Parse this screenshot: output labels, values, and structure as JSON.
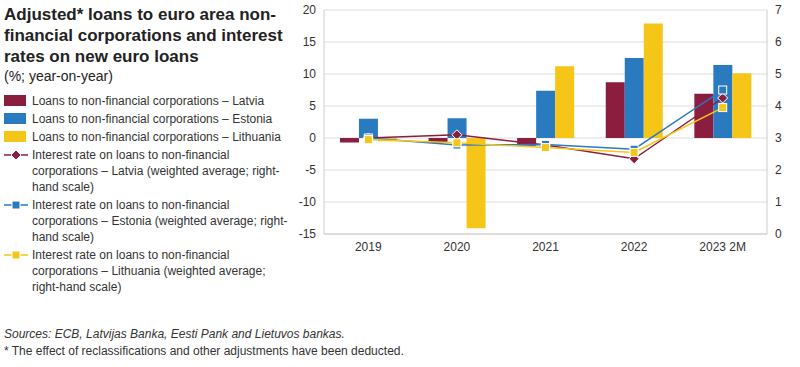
{
  "chart_data": {
    "type": "bar",
    "title": "Adjusted* loans to euro area non-financial corporations and interest  rates on new euro loans",
    "subtitle": "(%; year-on-year)",
    "source": "Sources: ECB, Latvijas Banka, Eesti Pank and Lietuvos bankas.",
    "footnote": "* The effect of reclassifications and other adjustments have been deducted.",
    "categories": [
      "2019",
      "2020",
      "2021",
      "2022",
      "2023 2M"
    ],
    "series": [
      {
        "name": "Loans to non-financial corporations – Latvia",
        "type": "bar",
        "color": "#8b1e3f",
        "values": [
          -0.7,
          -0.8,
          -1.2,
          8.7,
          6.9
        ]
      },
      {
        "name": "Loans to non-financial corporations – Estonia",
        "type": "bar",
        "color": "#2a7ac0",
        "values": [
          3.0,
          3.1,
          7.4,
          12.5,
          11.4
        ]
      },
      {
        "name": "Loans to non-financial corporations – Lithuania",
        "type": "bar",
        "color": "#f5c518",
        "values": [
          -0.5,
          -14.1,
          11.2,
          17.9,
          10.1
        ]
      },
      {
        "name": "Interest rate on loans to non-financial corporations – Latvia (weighted average; right-hand scale)",
        "type": "line",
        "axis": "y2",
        "marker": "diamond",
        "line_style": "solid",
        "color": "#8b1e3f",
        "values": [
          3.0,
          3.1,
          2.78,
          2.35,
          4.25
        ]
      },
      {
        "name": "Interest rate on loans to non-financial corporations – Estonia (weighted average; right-hand scale)",
        "type": "line",
        "axis": "y2",
        "marker": "square",
        "line_style": "solid",
        "color": "#2a7ac0",
        "values": [
          3.0,
          2.78,
          2.8,
          2.65,
          4.5
        ]
      },
      {
        "name": "Interest rate on loans to non-financial corporations – Lithuania (weighted average; right-hand scale)",
        "type": "line",
        "axis": "y2",
        "marker": "square",
        "line_style": "solid",
        "color": "#f5c518",
        "values": [
          2.95,
          2.85,
          2.7,
          2.55,
          3.95
        ]
      }
    ],
    "ylim": [
      -15,
      20
    ],
    "yticks": [
      -15,
      -10,
      -5,
      0,
      5,
      10,
      15,
      20
    ],
    "y2lim": [
      0,
      7
    ],
    "y2ticks": [
      0,
      1,
      2,
      3,
      4,
      5,
      6,
      7
    ],
    "grid": true,
    "legend": "left"
  }
}
